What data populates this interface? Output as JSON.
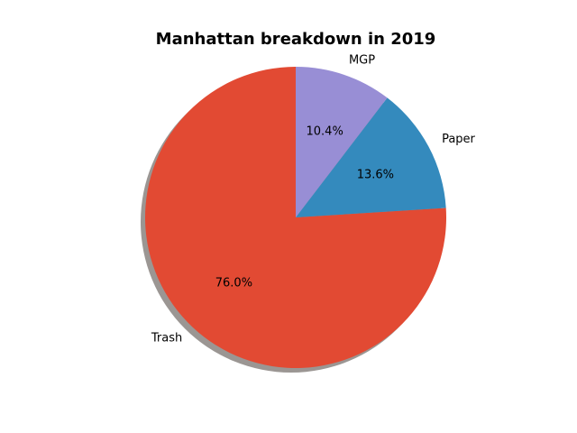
{
  "chart_data": {
    "type": "pie",
    "title": "Manhattan breakdown in 2019",
    "slices": [
      {
        "label": "Trash",
        "value": 76.0,
        "pct_label": "76.0%",
        "color": "#e24a33"
      },
      {
        "label": "Paper",
        "value": 13.6,
        "pct_label": "13.6%",
        "color": "#348abd"
      },
      {
        "label": "MGP",
        "value": 10.4,
        "pct_label": "10.4%",
        "color": "#988ed5"
      }
    ],
    "start_angle_deg": 90,
    "direction": "counterclockwise",
    "shadow": true,
    "shadow_color": "#9b9693"
  }
}
